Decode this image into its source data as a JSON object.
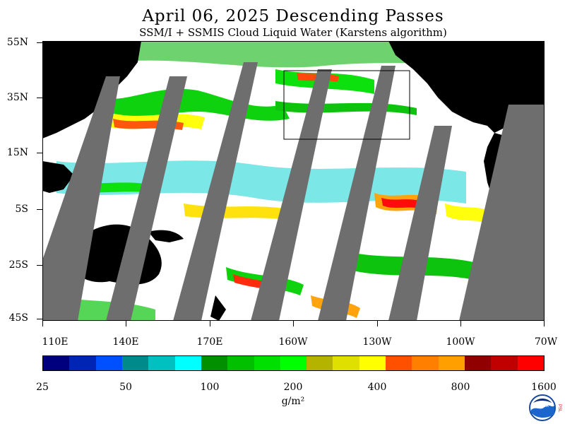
{
  "title": "April 06, 2025  Descending Passes",
  "subtitle": "SSM/I + SSMIS Cloud Liquid Water (Karstens algorithm)",
  "lat_labels": [
    "55N",
    "35N",
    "15N",
    "5S",
    "25S",
    "45S"
  ],
  "lon_labels": [
    "110E",
    "140E",
    "170E",
    "160W",
    "130W",
    "100W",
    "70W"
  ],
  "colorbar": {
    "colors": [
      "#00007f",
      "#0024b4",
      "#0050ff",
      "#008b8b",
      "#00c0c0",
      "#00ffff",
      "#009000",
      "#00c000",
      "#00e000",
      "#00ff00",
      "#b4b400",
      "#e0e000",
      "#ffff00",
      "#ff5000",
      "#ff8000",
      "#ffa000",
      "#900000",
      "#c00000",
      "#ff0000"
    ],
    "labels": [
      "25",
      "50",
      "100",
      "200",
      "400",
      "800",
      "1600"
    ],
    "units": "g/m²"
  },
  "logo": {
    "noaa_text": "NOAA",
    "psl_text": "PSL"
  }
}
